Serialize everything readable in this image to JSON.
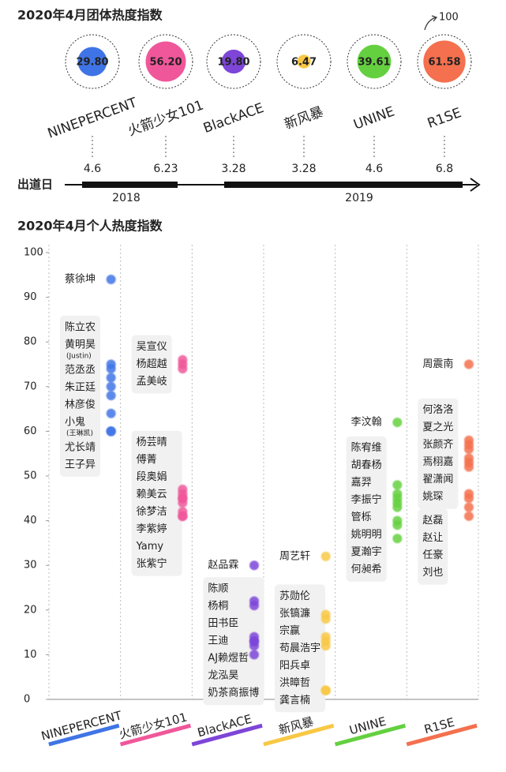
{
  "chart_data": [
    {
      "type": "bubble",
      "title": "2020年4月团体热度指数",
      "categories": [
        "NINEPERCENT",
        "火箭少女101",
        "BlackACE",
        "新风暴",
        "UNINE",
        "R1SE"
      ],
      "values": [
        29.8,
        56.2,
        19.8,
        6.47,
        39.61,
        61.58
      ],
      "value_labels": [
        "29.80",
        "56.20",
        "19.80",
        "6.47",
        "39.61",
        "61.58"
      ],
      "colors": [
        "#3f74e6",
        "#f0579a",
        "#7d45d8",
        "#f8c845",
        "#64d040",
        "#f4704e"
      ],
      "reference_value": 100,
      "timeline_label": "出道日",
      "dates": [
        "4.6",
        "6.23",
        "3.28",
        "3.28",
        "4.6",
        "6.8"
      ],
      "years": [
        "2018",
        "2019"
      ]
    },
    {
      "type": "strip",
      "title": "2020年4月个人热度指数",
      "categories": [
        "NINEPERCENT",
        "火箭少女101",
        "BlackACE",
        "新风暴",
        "UNINE",
        "R1SE"
      ],
      "colors": [
        "#3f74e6",
        "#f0579a",
        "#7d45d8",
        "#f8c845",
        "#64d040",
        "#f4704e"
      ],
      "ylim": [
        0,
        100
      ],
      "yticks": [
        0,
        10,
        20,
        30,
        40,
        50,
        60,
        70,
        80,
        90,
        100
      ],
      "groups": [
        {
          "clusters": [
            {
              "members": [
                {
                  "name": "蔡徐坤",
                  "value": 94
                }
              ]
            },
            {
              "members": [
                {
                  "name": "陈立农",
                  "value": 75
                },
                {
                  "name": "黄明昊",
                  "note": "(Justin)",
                  "value": 74
                },
                {
                  "name": "范丞丞",
                  "value": 72
                },
                {
                  "name": "朱正廷",
                  "value": 70
                },
                {
                  "name": "林彦俊",
                  "value": 68
                },
                {
                  "name": "小鬼",
                  "note": "(王琳凯)",
                  "value": 64
                },
                {
                  "name": "尤长靖",
                  "value": 60
                },
                {
                  "name": "王子异",
                  "value": 60
                }
              ]
            }
          ]
        },
        {
          "clusters": [
            {
              "members": [
                {
                  "name": "吴宣仪",
                  "value": 76
                },
                {
                  "name": "杨超越",
                  "value": 75
                },
                {
                  "name": "孟美岐",
                  "value": 74
                }
              ]
            },
            {
              "members": [
                {
                  "name": "杨芸晴",
                  "value": 47
                },
                {
                  "name": "傅菁",
                  "value": 46
                },
                {
                  "name": "段奥娟",
                  "value": 45
                },
                {
                  "name": "赖美云",
                  "value": 45
                },
                {
                  "name": "徐梦洁",
                  "value": 44
                },
                {
                  "name": "李紫婷",
                  "value": 42
                },
                {
                  "name": "Yamy",
                  "value": 41
                },
                {
                  "name": "张紫宁",
                  "value": 41
                }
              ]
            }
          ]
        },
        {
          "clusters": [
            {
              "members": [
                {
                  "name": "赵品霖",
                  "value": 30
                }
              ]
            },
            {
              "members": [
                {
                  "name": "陈顺",
                  "value": 22
                },
                {
                  "name": "杨桐",
                  "value": 21
                },
                {
                  "name": "田书臣",
                  "value": 14
                },
                {
                  "name": "王迪",
                  "value": 13
                },
                {
                  "name": "AJ赖煜哲",
                  "value": 13
                },
                {
                  "name": "龙泓昊",
                  "value": 12
                },
                {
                  "name": "奶茶商振博",
                  "value": 10
                }
              ]
            }
          ]
        },
        {
          "clusters": [
            {
              "members": [
                {
                  "name": "周艺轩",
                  "value": 32
                }
              ]
            },
            {
              "members": [
                {
                  "name": "苏勋伦",
                  "value": 19
                },
                {
                  "name": "张镐濂",
                  "value": 18
                },
                {
                  "name": "宗赢",
                  "value": 14
                },
                {
                  "name": "苟晨浩宇",
                  "value": 13
                },
                {
                  "name": "阳兵卓",
                  "value": 12
                },
                {
                  "name": "洪暲哲",
                  "value": 2
                },
                {
                  "name": "龚言楠",
                  "value": 2
                }
              ]
            }
          ]
        },
        {
          "clusters": [
            {
              "members": [
                {
                  "name": "李汶翰",
                  "value": 62
                }
              ]
            },
            {
              "members": [
                {
                  "name": "陈宥维",
                  "value": 48
                },
                {
                  "name": "胡春杨",
                  "value": 46
                },
                {
                  "name": "嘉羿",
                  "value": 45
                },
                {
                  "name": "李振宁",
                  "value": 44
                },
                {
                  "name": "管栎",
                  "value": 43
                },
                {
                  "name": "姚明明",
                  "value": 40
                },
                {
                  "name": "夏瀚宇",
                  "value": 39
                },
                {
                  "name": "何昶希",
                  "value": 36
                }
              ]
            }
          ]
        },
        {
          "clusters": [
            {
              "members": [
                {
                  "name": "周震南",
                  "value": 75
                }
              ]
            },
            {
              "members": [
                {
                  "name": "何洛洛",
                  "value": 58
                },
                {
                  "name": "夏之光",
                  "value": 57
                },
                {
                  "name": "张颜齐",
                  "value": 56
                },
                {
                  "name": "焉栩嘉",
                  "value": 54
                },
                {
                  "name": "翟潇闻",
                  "value": 53
                },
                {
                  "name": "姚琛",
                  "value": 52
                }
              ]
            },
            {
              "members": [
                {
                  "name": "赵磊",
                  "value": 46
                },
                {
                  "name": "赵让",
                  "value": 45
                },
                {
                  "name": "任豪",
                  "value": 43
                },
                {
                  "name": "刘也",
                  "value": 41
                }
              ]
            }
          ]
        }
      ]
    }
  ]
}
